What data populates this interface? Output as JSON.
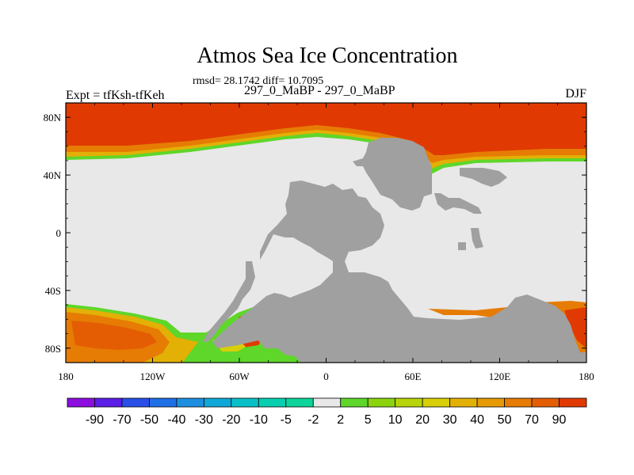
{
  "chart_data": {
    "type": "heatmap",
    "title": "Atmos Sea Ice Concentration",
    "stats_text": "rmsd= 28.1742 diff= 10.7095",
    "left_label": "Expt = tfKsh-tfKeh",
    "center_label": "297_0_MaBP - 297_0_MaBP",
    "right_label": "DJF",
    "x_ticks": [
      "180",
      "120W",
      "60W",
      "0",
      "60E",
      "120E",
      "180"
    ],
    "x_tick_values": [
      -180,
      -120,
      -60,
      0,
      60,
      120,
      180
    ],
    "y_ticks": [
      "80N",
      "40N",
      "0",
      "40S",
      "80S"
    ],
    "y_tick_values": [
      80,
      40,
      0,
      -40,
      -80
    ],
    "xlim": [
      -180,
      180
    ],
    "ylim": [
      -90,
      90
    ],
    "colorbar": {
      "labels": [
        "-90",
        "-70",
        "-50",
        "-40",
        "-30",
        "-20",
        "-10",
        "-5",
        "-2",
        "2",
        "5",
        "10",
        "20",
        "30",
        "40",
        "50",
        "70",
        "90"
      ],
      "colors": [
        "#8c0fe0",
        "#5a1ee6",
        "#2a4fe8",
        "#1f6fe6",
        "#1e8fe0",
        "#10a8d8",
        "#0ac0c8",
        "#08cfb0",
        "#e8e8e8",
        "#5fd62a",
        "#8cd40e",
        "#b8d40a",
        "#d7cf08",
        "#e3b006",
        "#e69a05",
        "#e67c04",
        "#e45d03",
        "#e03a02"
      ]
    },
    "land_color": "#a0a0a0",
    "ocean_zero_color": "#e8e8e8"
  }
}
